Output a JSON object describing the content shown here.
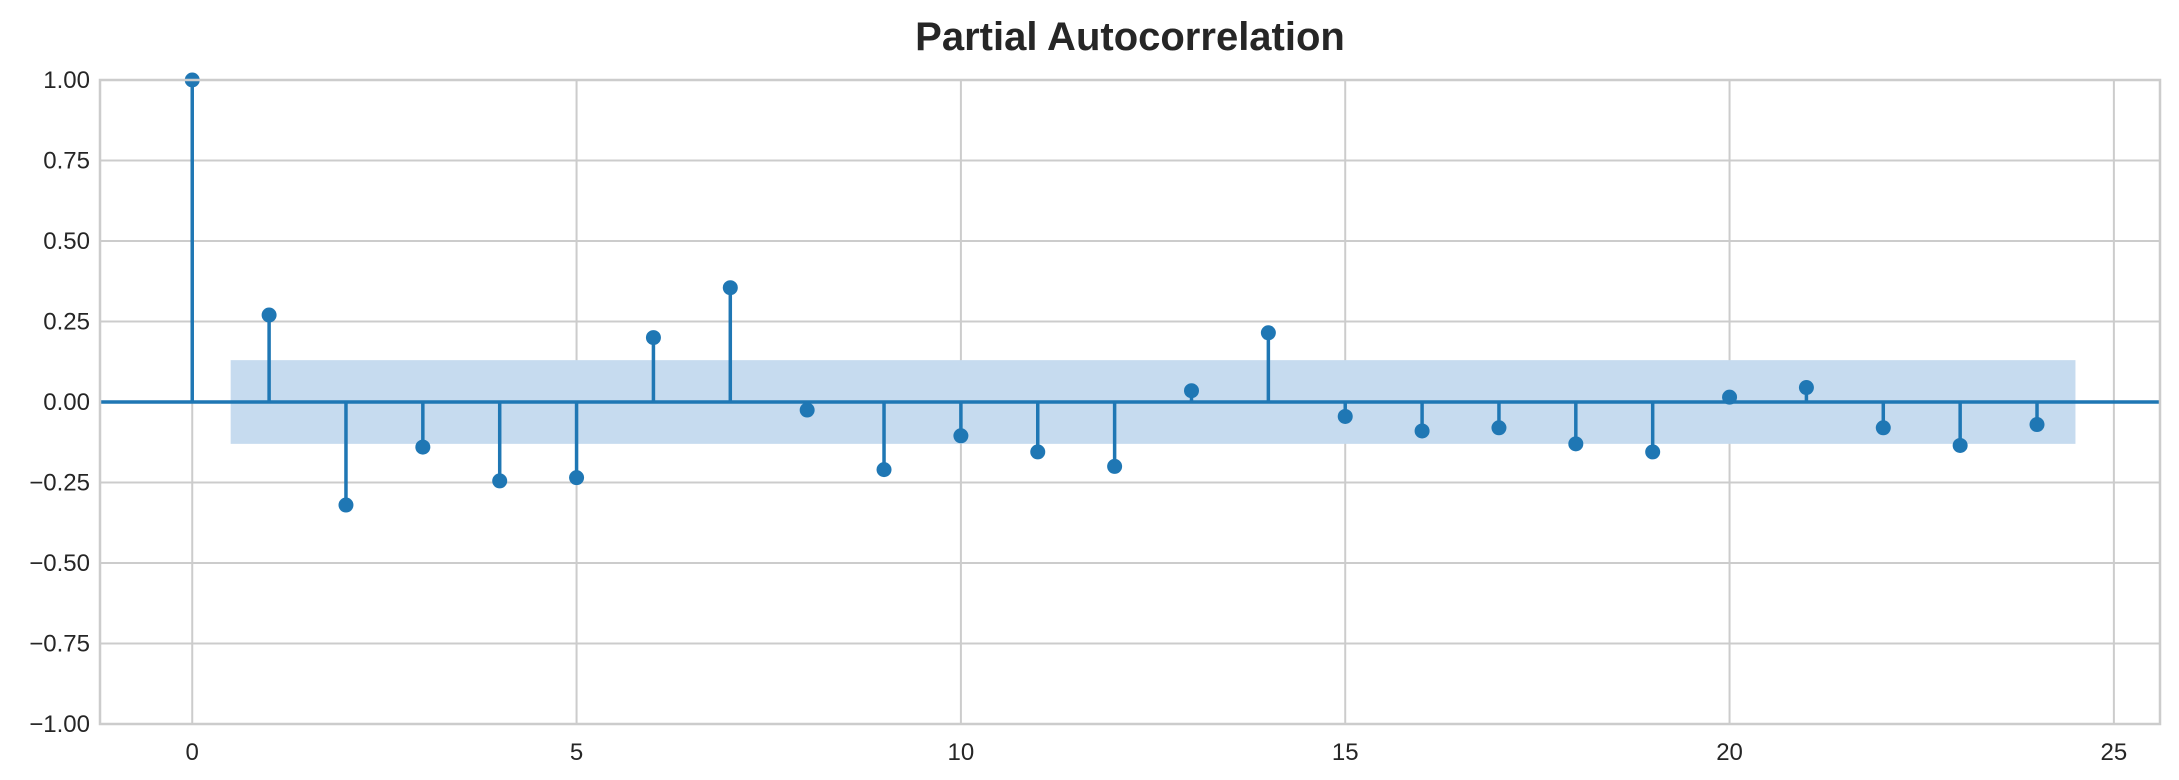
{
  "chart_data": {
    "type": "stem",
    "title": "Partial Autocorrelation",
    "xlabel": "",
    "ylabel": "",
    "xlim": [
      -1.2,
      25.6
    ],
    "ylim": [
      -1.0,
      1.0
    ],
    "x_ticks": [
      0,
      5,
      10,
      15,
      20,
      25
    ],
    "x_tick_labels": [
      "0",
      "5",
      "10",
      "15",
      "20",
      "25"
    ],
    "y_ticks": [
      -1.0,
      -0.75,
      -0.5,
      -0.25,
      0.0,
      0.25,
      0.5,
      0.75,
      1.0
    ],
    "y_tick_labels": [
      "−1.00",
      "−0.75",
      "−0.50",
      "−0.25",
      "0.00",
      "0.25",
      "0.50",
      "0.75",
      "1.00"
    ],
    "grid": true,
    "lags": [
      0,
      1,
      2,
      3,
      4,
      5,
      6,
      7,
      8,
      9,
      10,
      11,
      12,
      13,
      14,
      15,
      16,
      17,
      18,
      19,
      20,
      21,
      22,
      23,
      24
    ],
    "values": [
      1.0,
      0.27,
      -0.32,
      -0.14,
      -0.245,
      -0.235,
      0.2,
      0.355,
      -0.025,
      -0.21,
      -0.105,
      -0.155,
      -0.2,
      0.035,
      0.215,
      -0.045,
      -0.09,
      -0.08,
      -0.13,
      -0.155,
      0.015,
      0.045,
      -0.08,
      -0.135,
      -0.07
    ],
    "confidence_band": {
      "x_range": [
        0.5,
        24.5
      ],
      "y_range": [
        -0.13,
        0.13
      ]
    },
    "colors": {
      "stem": "#1f77b4",
      "band": "#c6dbef",
      "grid": "#cccccc",
      "spine": "#cccccc",
      "text": "#262626"
    }
  }
}
